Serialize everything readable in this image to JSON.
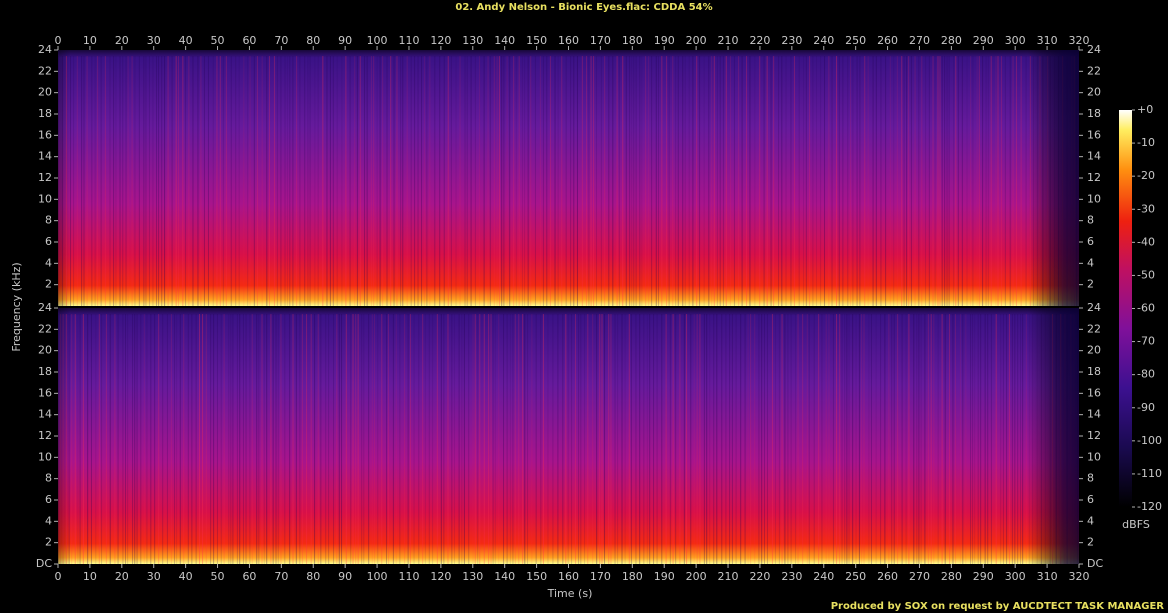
{
  "chart_data": {
    "type": "spectrogram",
    "title": "02. Andy Nelson - Bionic Eyes.flac: CDDA 54%",
    "xlabel": "Time (s)",
    "ylabel": "Frequency (kHz)",
    "xlim": [
      0,
      320
    ],
    "xticks": [
      0,
      10,
      20,
      30,
      40,
      50,
      60,
      70,
      80,
      90,
      100,
      110,
      120,
      130,
      140,
      150,
      160,
      170,
      180,
      190,
      200,
      210,
      220,
      230,
      240,
      250,
      260,
      270,
      280,
      290,
      300,
      310,
      320
    ],
    "channels": [
      {
        "ylim": [
          0,
          24
        ],
        "yticks": [
          2,
          4,
          6,
          8,
          10,
          12,
          14,
          16,
          18,
          20,
          22,
          24
        ]
      },
      {
        "ylim": [
          0,
          24
        ],
        "yticks": [
          {
            "value": 0,
            "label": "DC"
          },
          2,
          4,
          6,
          8,
          10,
          12,
          14,
          16,
          18,
          20,
          22,
          24
        ]
      }
    ],
    "colorbar": {
      "label": "dBFS",
      "lim": [
        -120,
        0
      ],
      "ticks": [
        {
          "value": 0,
          "label": "+0"
        },
        -10,
        -20,
        -30,
        -40,
        -50,
        -60,
        -70,
        -80,
        -90,
        -100,
        -110,
        -120
      ]
    },
    "footer": "Produced by SOX on request by AUCDTECT TASK MANAGER"
  }
}
